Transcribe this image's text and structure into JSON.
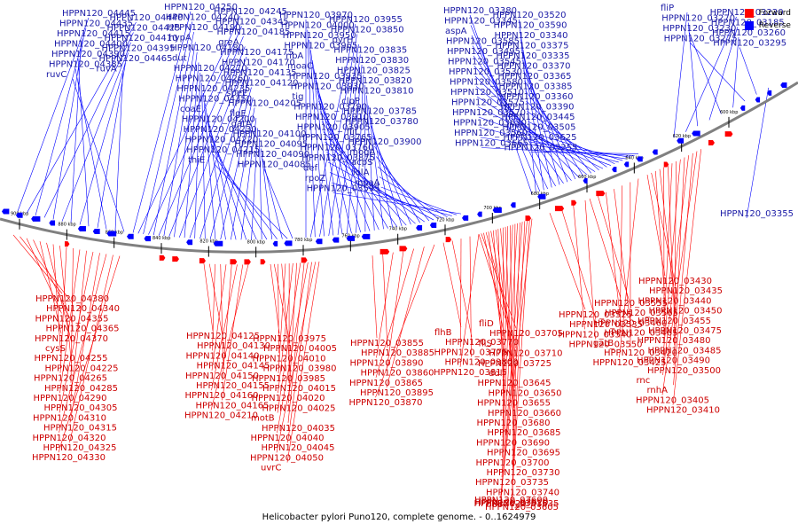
{
  "title": "Helicobacter pylori Puno120, complete genome. - 0..1624979",
  "legend": [
    {
      "label": "Forward",
      "color": "#ff0000"
    },
    {
      "label": "Reverse",
      "color": "#0000ff"
    }
  ],
  "colors": {
    "forward": "#ff0000",
    "reverse": "#0000ff",
    "forward_label": "#cc0000",
    "reverse_label": "#1a1aa6",
    "backbone": "#808080"
  },
  "scale_ticks": [
    "900 kbp",
    "880 kbp",
    "860 kbp",
    "840 kbp",
    "820 kbp",
    "800 kbp",
    "780 kbp",
    "760 kbp",
    "740 kbp",
    "720 kbp",
    "700 kbp",
    "680 kbp",
    "660 kbp",
    "640 kbp",
    "620 kbp",
    "600 kbp"
  ],
  "reverse_labels": [
    "HPPN120_04445",
    "HPPN120_04440",
    "HPPN120_04435",
    "HPPN120_04425",
    "HPPN120_04415",
    "HPPN120_04410",
    "HPPN120_04400",
    "HPPN120_04395",
    "HPPN120_04390",
    "HPPN120_04465",
    "HPPN120_04385",
    "ruvA",
    "ruvC",
    "HPPN120_04250",
    "HPPN120_04245",
    "HPPN120_04240",
    "HPPN120_04345",
    "HPPN120_04190",
    "HPPN120_04185",
    "hypA",
    "greA",
    "HPPN120_04180",
    "HPPN120_04175",
    "dut",
    "HPPN120_04170",
    "HPPN120_04270",
    "HPPN120_04135",
    "HPPN120_04260",
    "HPPN120_04120",
    "HPPN120_04235",
    "speE",
    "HPPN120_04350",
    "HPPN120_04205",
    "coaE",
    "flgE",
    "HPPN120_04200",
    "gatA",
    "HPPN120_04230",
    "HPPN120_04100",
    "HPPN120_04220",
    "HPPN120_04095",
    "HPPN120_04215",
    "HPPN120_04090",
    "thiE",
    "HPPN120_04085",
    "HPPN120_03970",
    "HPPN120_03955",
    "HPPN120_04000",
    "HPPN120_03850",
    "HPPN120_03950",
    "pyrH",
    "HPPN120_03965",
    "HPPN120_03835",
    "ribA",
    "HPPN120_03830",
    "moaC",
    "HPPN120_03825",
    "HPPN120_03935",
    "HPPN120_03820",
    "HPPN120_03930",
    "HPPN120_03810",
    "tig",
    "clpP",
    "HPPN120_03790",
    "HPPN120_03785",
    "HPPN120_03910",
    "HPPN120_03780",
    "HPPN120_03905",
    "fliL",
    "HPPN120_03765",
    "HPPN120_03900",
    "HPPN120_03760",
    "mogA",
    "HPPN120_03875",
    "acpS",
    "def",
    "lolA",
    "rpoZ",
    "moaA",
    "HPPN120_03595",
    "HPPN120_03380",
    "HPPN120_03520",
    "HPPN120_03345",
    "HPPN120_03590",
    "aspA",
    "HPPN120_03340",
    "HPPN120_03585",
    "HPPN120_03375",
    "HPPN120_03495",
    "HPPN120_03335",
    "HPPN120_03545",
    "HPPN120_03370",
    "HPPN120_03530",
    "HPPN120_03365",
    "HPPN120_03580",
    "HPPN120_03385",
    "HPPN120_03510",
    "HPPN120_03360",
    "HPPN120_03575",
    "HPPN120_03390",
    "HPPN120_03570",
    "HPPN120_03445",
    "HPPN120_03630",
    "HPPN120_03505",
    "HPPN120_03560",
    "HPPN120_03625",
    "HPPN120_03665",
    "HPPN120_03255",
    "fliP",
    "HPPN120_03220",
    "HPPN120_03270",
    "HPPN120_03185",
    "HPPN120_03230",
    "HPPN120_03260",
    "HPPN120_03275",
    "HPPN120_03295",
    "HPPN120_03355"
  ],
  "forward_labels": [
    "HPPN120_04380",
    "HPPN120_04340",
    "HPPN120_04355",
    "HPPN120_04365",
    "HPPN120_04370",
    "cysS",
    "HPPN120_04255",
    "HPPN120_04225",
    "HPPN120_04265",
    "HPPN120_04285",
    "HPPN120_04290",
    "HPPN120_04305",
    "HPPN120_04310",
    "HPPN120_04315",
    "HPPN120_04320",
    "HPPN120_04325",
    "HPPN120_04330",
    "HPPN120_04125",
    "HPPN120_04130",
    "HPPN120_04140",
    "HPPN120_04145",
    "HPPN120_04150",
    "HPPN120_04155",
    "HPPN120_04160",
    "HPPN120_04165",
    "HPPN120_04210",
    "HPPN120_03975",
    "HPPN120_04005",
    "HPPN120_04010",
    "HPPN120_03980",
    "HPPN120_03985",
    "HPPN120_04015",
    "HPPN120_04020",
    "HPPN120_04025",
    "motB",
    "HPPN120_04035",
    "HPPN120_04040",
    "HPPN120_04045",
    "HPPN120_04050",
    "uvrC",
    "HPPN120_03855",
    "HPPN120_03885",
    "HPPN120_03890",
    "HPPN120_03860",
    "HPPN120_03865",
    "HPPN120_03895",
    "HPPN120_03870",
    "flhB",
    "HPPN120_03770",
    "HPPN120_03775",
    "HPPN120_03800",
    "HPPN120_03815",
    "fliD",
    "HPPN120_03705",
    "fliS",
    "HPPN120_03710",
    "HPPN120_03725",
    "ddl",
    "HPPN120_03645",
    "HPPN120_03650",
    "HPPN120_03655",
    "HPPN120_03660",
    "HPPN120_03680",
    "HPPN120_03685",
    "HPPN120_03690",
    "HPPN120_03695",
    "HPPN120_03700",
    "HPPN120_03730",
    "HPPN120_03735",
    "HPPN120_03740",
    "HPPN120_03620",
    "HPPN120_03635",
    "HPPN120_03600",
    "HPPN120_03605",
    "HPPN120_03515",
    "HPPN120_03525",
    "HPPN120_03535",
    "HPPN120_03540",
    "HPPN120_03550",
    "HPPN120_03555",
    "HPPN120_03565",
    "HPPN120_03460",
    "HPPN120_03465",
    "gatB",
    "HPPN120_03420",
    "HPPN120_03425",
    "HPPN120_03430",
    "HPPN120_03435",
    "HPPN120_03440",
    "HPPN120_03450",
    "HPPN120_03455",
    "HPPN120_03475",
    "HPPN120_03480",
    "HPPN120_03485",
    "HPPN120_03490",
    "HPPN120_03500",
    "rnc",
    "rnhA",
    "HPPN120_03405",
    "HPPN120_03410"
  ]
}
